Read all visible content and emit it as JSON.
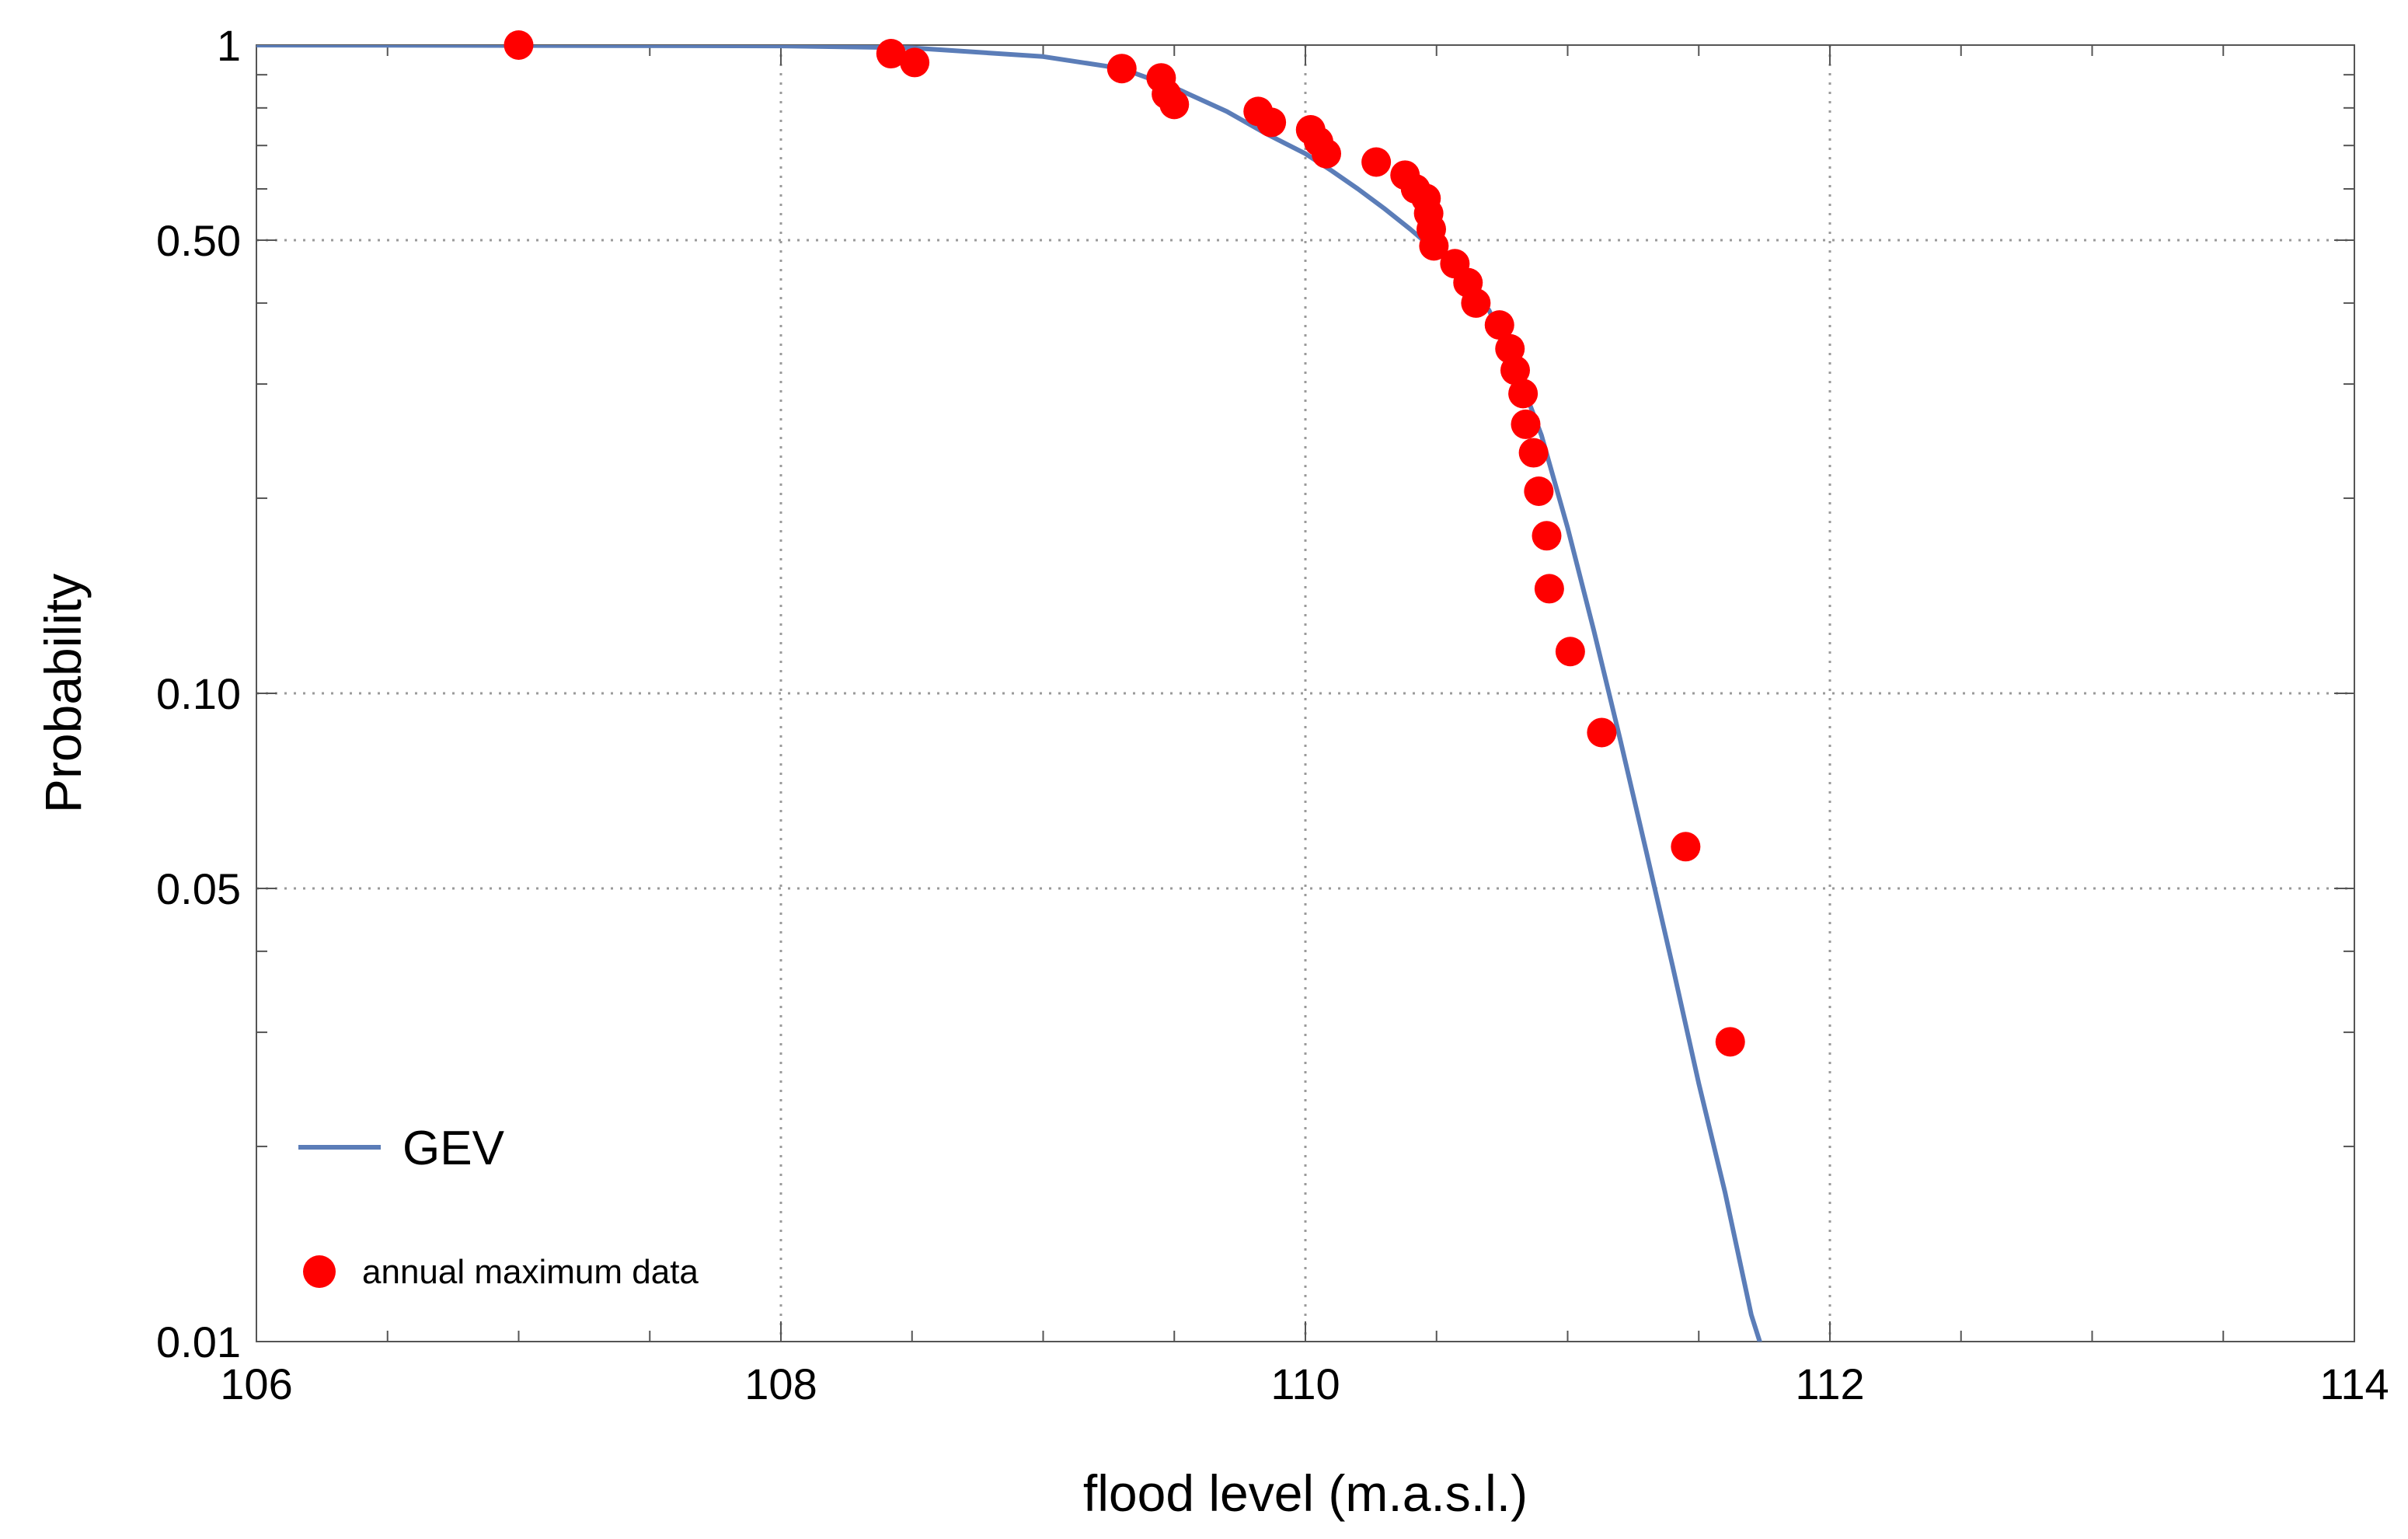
{
  "chart_data": {
    "type": "scatter",
    "title": "",
    "xlabel": "flood level (m.a.s.l.)",
    "ylabel": "Probability",
    "xlim": [
      106,
      114
    ],
    "ylim": [
      0.01,
      1
    ],
    "yscale": "log",
    "grid": true,
    "legend_position": "bottom-left",
    "x_ticks": [
      {
        "value": 106,
        "label": "106"
      },
      {
        "value": 108,
        "label": "108"
      },
      {
        "value": 110,
        "label": "110"
      },
      {
        "value": 112,
        "label": "112"
      },
      {
        "value": 114,
        "label": "114"
      }
    ],
    "y_ticks": [
      {
        "value": 0.01,
        "label": "0.01"
      },
      {
        "value": 0.05,
        "label": "0.05"
      },
      {
        "value": 0.1,
        "label": "0.10"
      },
      {
        "value": 0.5,
        "label": "0.50"
      },
      {
        "value": 1,
        "label": "1"
      }
    ],
    "y_grid_values": [
      0.05,
      0.1,
      0.5
    ],
    "x_grid_values": [
      108,
      110,
      112
    ],
    "series": [
      {
        "name": "GEV",
        "type": "line",
        "color": "#5B7DB8",
        "x": [
          106.0,
          108.0,
          108.5,
          109.0,
          109.3,
          109.5,
          109.7,
          109.85,
          110.0,
          110.1,
          110.2,
          110.3,
          110.4,
          110.5,
          110.6,
          110.7,
          110.8,
          110.9,
          111.0,
          111.1,
          111.2,
          111.3,
          111.4,
          111.5,
          111.6,
          111.7,
          111.75
        ],
        "y": [
          1.0,
          0.997,
          0.99,
          0.96,
          0.92,
          0.86,
          0.79,
          0.73,
          0.68,
          0.64,
          0.6,
          0.56,
          0.52,
          0.48,
          0.44,
          0.39,
          0.32,
          0.25,
          0.18,
          0.125,
          0.085,
          0.057,
          0.038,
          0.025,
          0.017,
          0.011,
          0.0095
        ]
      },
      {
        "name": "annual maximum data",
        "type": "scatter",
        "color": "#FF0000",
        "x": [
          107.0,
          108.42,
          108.51,
          109.3,
          109.45,
          109.47,
          109.5,
          109.82,
          109.87,
          110.02,
          110.05,
          110.08,
          110.27,
          110.38,
          110.42,
          110.46,
          110.47,
          110.48,
          110.49,
          110.57,
          110.62,
          110.65,
          110.74,
          110.78,
          110.8,
          110.83,
          110.84,
          110.87,
          110.89,
          110.92,
          110.93,
          111.01,
          111.13,
          111.45,
          111.62
        ],
        "y": [
          1.0,
          0.97,
          0.94,
          0.92,
          0.89,
          0.84,
          0.81,
          0.79,
          0.76,
          0.74,
          0.71,
          0.68,
          0.66,
          0.63,
          0.6,
          0.58,
          0.55,
          0.52,
          0.49,
          0.46,
          0.43,
          0.4,
          0.37,
          0.34,
          0.315,
          0.29,
          0.26,
          0.235,
          0.205,
          0.175,
          0.145,
          0.116,
          0.087,
          0.058,
          0.029
        ]
      }
    ]
  }
}
